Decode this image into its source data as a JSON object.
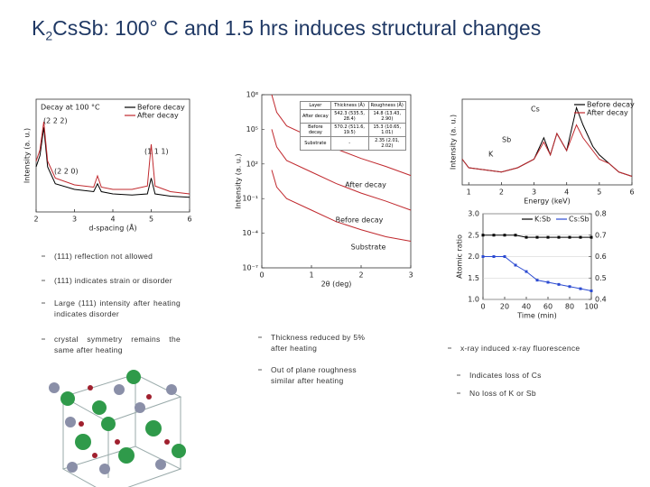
{
  "title": {
    "main": "K",
    "sub": "2",
    "rest": "CsSb: 100° C and 1.5 hrs induces structural changes"
  },
  "bullets_left": [
    "(111) reflection not allowed",
    "(111) indicates strain or disorder",
    "Large (111) intensity after heating indicates disorder",
    "crystal symmetry remains the same after heating"
  ],
  "bullets_middle": [
    "Thickness reduced by 5% after heating",
    "Out of plane roughness similar after heating"
  ],
  "bullets_right": [
    "x-ray induced x-ray fluorescence",
    "Indicates loss of Cs",
    "No loss of K or Sb"
  ],
  "table": {
    "header": [
      "Layer",
      "Thickness (Å)",
      "Roughness (Å)"
    ],
    "rows": [
      [
        "After decay",
        "542.3 (535.5, 28.4)",
        "14.8 (13.43, 2.90)"
      ],
      [
        "Before decay",
        "570.2 (511.6, 19.5)",
        "15.3 (10.65, 1.01)"
      ],
      [
        "Substrate",
        "-",
        "2.35 (2.01, 2.02)"
      ]
    ]
  },
  "chart_data": [
    {
      "type": "line",
      "xlabel": "d-spacing (Å)",
      "ylabel": "Intensity (a. u.)",
      "annotations": [
        "Decay at 100 °C",
        "(2 2 2)",
        "(2 2 0)",
        "(1 1 1)"
      ],
      "x": [
        2,
        2.1,
        2.2,
        2.3,
        2.5,
        3,
        3.5,
        3.6,
        3.7,
        4,
        4.5,
        4.9,
        5.0,
        5.1,
        5.5,
        6
      ],
      "series": [
        {
          "name": "Before decay",
          "color": "#000000",
          "values": [
            4,
            5,
            7.5,
            4,
            2.5,
            2,
            1.8,
            2.5,
            1.8,
            1.6,
            1.5,
            1.6,
            3,
            1.6,
            1.4,
            1.3
          ]
        },
        {
          "name": "After decay",
          "color": "#c0282d",
          "values": [
            4.5,
            5.5,
            8,
            4.5,
            3,
            2.4,
            2.2,
            3.2,
            2.2,
            2,
            2,
            2.3,
            6,
            2.3,
            1.8,
            1.6
          ]
        }
      ],
      "xlim": [
        2,
        6
      ],
      "xticks": [
        2,
        3,
        4,
        5,
        6
      ],
      "ylim": [
        0,
        10
      ],
      "yticks": [],
      "legend": "upper right"
    },
    {
      "type": "line",
      "xlabel": "2θ (deg)",
      "ylabel": "Intensity (a. u.)",
      "log_y": true,
      "x": [
        0.2,
        0.3,
        0.5,
        1,
        1.5,
        2,
        2.5,
        3
      ],
      "series": [
        {
          "name": "After decay",
          "color": "#c0282d",
          "values": [
            100000000,
            3000000,
            200000,
            20000,
            2000,
            300,
            60,
            10
          ]
        },
        {
          "name": "Before decay",
          "color": "#c0282d",
          "values": [
            100000,
            3000,
            200,
            20,
            2,
            0.3,
            0.06,
            0.01
          ]
        },
        {
          "name": "Substrate",
          "color": "#c0282d",
          "values": [
            30,
            1,
            0.1,
            0.01,
            0.001,
            0.0002,
            5e-05,
            2e-05
          ]
        }
      ],
      "xlim": [
        0,
        3
      ],
      "xticks": [
        0,
        1,
        2,
        3
      ],
      "ylim": [
        1e-07,
        100000000
      ],
      "yticks": [
        {
          "value": 100000000,
          "label": "10⁸"
        },
        {
          "value": 100000,
          "label": "10⁵"
        },
        {
          "value": 100,
          "label": "10²"
        },
        {
          "value": 0.1,
          "label": "10⁻¹"
        },
        {
          "value": 0.0001,
          "label": "10⁻⁴"
        },
        {
          "value": 1e-07,
          "label": "10⁻⁷"
        }
      ],
      "legend": "curve labels"
    },
    {
      "type": "line",
      "xlabel": "Energy (keV)",
      "ylabel": "Intensity (a. u.)",
      "annotations": [
        "Cs",
        "Sb",
        "K"
      ],
      "x": [
        0.8,
        1,
        2,
        2.5,
        3,
        3.3,
        3.5,
        3.7,
        4,
        4.3,
        4.5,
        4.8,
        5,
        5.3,
        5.6,
        6
      ],
      "series": [
        {
          "name": "Before decay",
          "color": "#000000",
          "values": [
            3,
            2,
            1.5,
            2,
            3,
            5.5,
            3.5,
            6,
            4,
            9,
            7,
            4.5,
            3.5,
            2.5,
            1.5,
            1
          ]
        },
        {
          "name": "After decay",
          "color": "#c0282d",
          "values": [
            3,
            2,
            1.5,
            2,
            3,
            5,
            3.5,
            6,
            4,
            7,
            5.5,
            4,
            3,
            2.5,
            1.5,
            1
          ]
        }
      ],
      "xlim": [
        0.8,
        6
      ],
      "xticks": [
        1,
        2,
        3,
        4,
        5,
        6
      ],
      "ylim": [
        0,
        10
      ],
      "yticks": [],
      "legend": "upper right"
    },
    {
      "type": "line",
      "markers": true,
      "xlabel": "Time (min)",
      "ylabel": "Atomic ratio",
      "x": [
        0,
        10,
        20,
        30,
        40,
        50,
        60,
        70,
        80,
        90,
        100
      ],
      "series": [
        {
          "name": "K:Sb",
          "color": "#000000",
          "values": [
            2.5,
            2.5,
            2.5,
            2.5,
            2.45,
            2.45,
            2.45,
            2.45,
            2.45,
            2.45,
            2.45
          ]
        },
        {
          "name": "Cs:Sb",
          "color": "#2c4bd1",
          "axis": "y2",
          "values": [
            0.6,
            0.6,
            0.6,
            0.56,
            0.53,
            0.49,
            0.48,
            0.47,
            0.46,
            0.45,
            0.44
          ]
        }
      ],
      "xlim": [
        0,
        100
      ],
      "xticks": [
        0,
        20,
        40,
        60,
        80,
        100
      ],
      "ylim": [
        1,
        3
      ],
      "yticks": [
        {
          "value": 1,
          "label": "1.0"
        },
        {
          "value": 1.5,
          "label": "1.5"
        },
        {
          "value": 2,
          "label": "2.0"
        },
        {
          "value": 2.5,
          "label": "2.5"
        },
        {
          "value": 3,
          "label": "3.0"
        }
      ],
      "y2lim": [
        0.4,
        0.8
      ],
      "y2ticks": [
        0.4,
        0.5,
        0.6,
        0.7,
        0.8
      ],
      "grid": true,
      "legend": "upper center"
    }
  ]
}
